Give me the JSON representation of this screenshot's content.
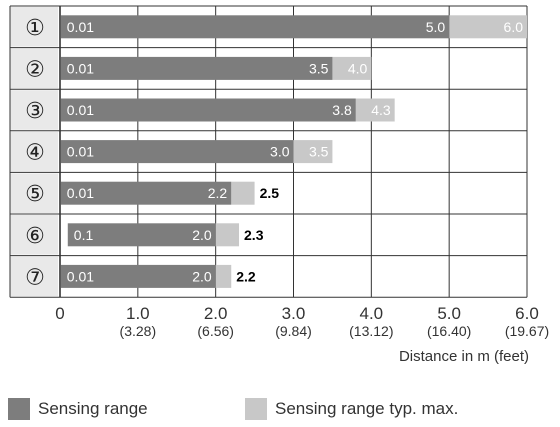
{
  "chart_data": {
    "type": "bar",
    "orientation": "horizontal-range",
    "xlabel": "Distance in m (feet)",
    "xlim": [
      0,
      6.0
    ],
    "x_ticks": [
      {
        "value": 0,
        "label": "0",
        "sub": ""
      },
      {
        "value": 1.0,
        "label": "1.0",
        "sub": "(3.28)"
      },
      {
        "value": 2.0,
        "label": "2.0",
        "sub": "(6.56)"
      },
      {
        "value": 3.0,
        "label": "3.0",
        "sub": "(9.84)"
      },
      {
        "value": 4.0,
        "label": "4.0",
        "sub": "(13.12)"
      },
      {
        "value": 5.0,
        "label": "5.0",
        "sub": "(16.40)"
      },
      {
        "value": 6.0,
        "label": "6.0",
        "sub": "(19.67)"
      }
    ],
    "grid": true,
    "categories": [
      "①",
      "②",
      "③",
      "④",
      "⑤",
      "⑥",
      "⑦"
    ],
    "rows": [
      {
        "label": "①",
        "min": 0.01,
        "min_label": "0.01",
        "range": 5.0,
        "range_label": "5.0",
        "max": 6.0,
        "max_label": "6.0"
      },
      {
        "label": "②",
        "min": 0.01,
        "min_label": "0.01",
        "range": 3.5,
        "range_label": "3.5",
        "max": 4.0,
        "max_label": "4.0"
      },
      {
        "label": "③",
        "min": 0.01,
        "min_label": "0.01",
        "range": 3.8,
        "range_label": "3.8",
        "max": 4.3,
        "max_label": "4.3"
      },
      {
        "label": "④",
        "min": 0.01,
        "min_label": "0.01",
        "range": 3.0,
        "range_label": "3.0",
        "max": 3.5,
        "max_label": "3.5"
      },
      {
        "label": "⑤",
        "min": 0.01,
        "min_label": "0.01",
        "range": 2.2,
        "range_label": "2.2",
        "max": 2.5,
        "max_label": "2.5"
      },
      {
        "label": "⑥",
        "min": 0.1,
        "min_label": "0.1",
        "range": 2.0,
        "range_label": "2.0",
        "max": 2.3,
        "max_label": "2.3"
      },
      {
        "label": "⑦",
        "min": 0.01,
        "min_label": "0.01",
        "range": 2.0,
        "range_label": "2.0",
        "max": 2.2,
        "max_label": "2.2"
      }
    ],
    "series": [
      {
        "name": "Sensing range",
        "color": "#7d7d7d"
      },
      {
        "name": "Sensing range typ. max.",
        "color": "#c8c8c8"
      }
    ],
    "legend_position": "bottom"
  }
}
